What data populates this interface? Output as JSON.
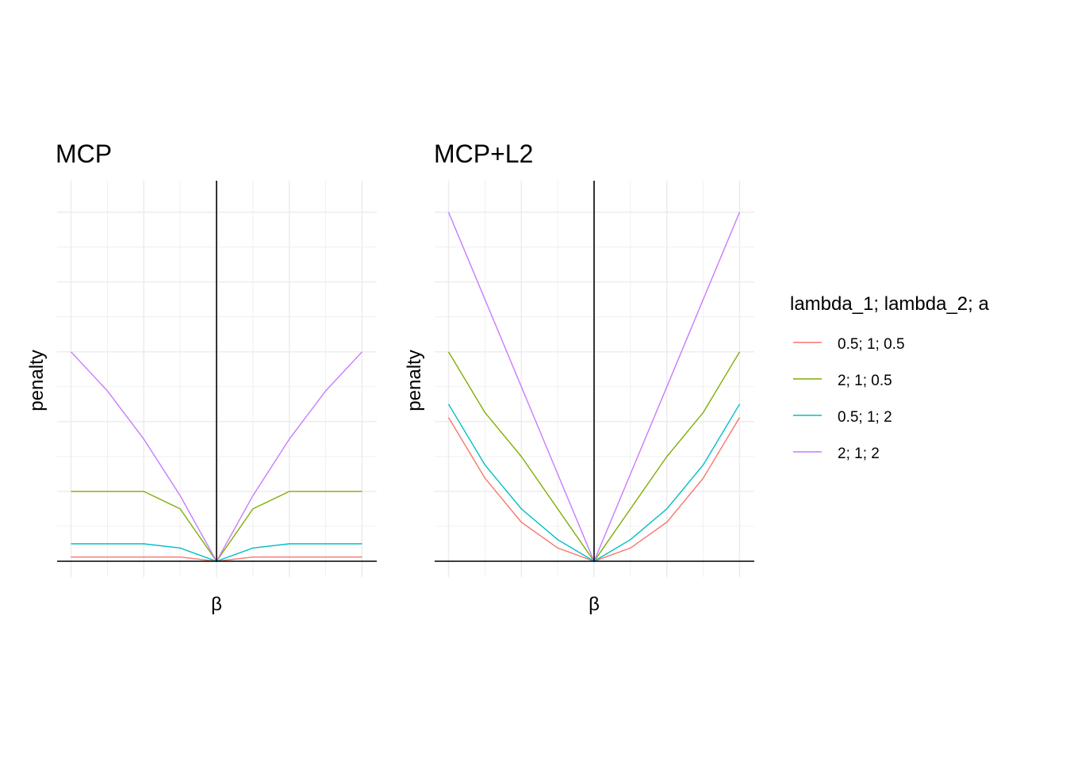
{
  "chart_data": [
    {
      "type": "line",
      "title": "MCP",
      "xlabel": "β",
      "ylabel": "penalty",
      "xlim": [
        -2,
        2
      ],
      "ylim": [
        0,
        5.2
      ],
      "x_sampling": "0.5 steps from -2 to 2",
      "series": [
        {
          "name": "0.5; 1; 0.5",
          "color": "#F8766D",
          "x": [
            -2,
            -1.5,
            -1,
            -0.5,
            0,
            0.5,
            1,
            1.5,
            2
          ],
          "y": [
            0.06,
            0.06,
            0.06,
            0.06,
            0,
            0.06,
            0.06,
            0.06,
            0.06
          ]
        },
        {
          "name": "2; 1; 0.5",
          "color": "#7CAE00",
          "x": [
            -2,
            -1.5,
            -1,
            -0.5,
            0,
            0.5,
            1,
            1.5,
            2
          ],
          "y": [
            1.0,
            1.0,
            1.0,
            0.75,
            0,
            0.75,
            1.0,
            1.0,
            1.0
          ]
        },
        {
          "name": "0.5; 1; 2",
          "color": "#00BFC4",
          "x": [
            -2,
            -1.5,
            -1,
            -0.5,
            0,
            0.5,
            1,
            1.5,
            2
          ],
          "y": [
            0.25,
            0.25,
            0.25,
            0.19,
            0,
            0.19,
            0.25,
            0.25,
            0.25
          ]
        },
        {
          "name": "2; 1; 2",
          "color": "#C77CFF",
          "x": [
            -2,
            -1.5,
            -1,
            -0.5,
            0,
            0.5,
            1,
            1.5,
            2
          ],
          "y": [
            3.0,
            2.44,
            1.75,
            0.94,
            0,
            0.94,
            1.75,
            2.44,
            3.0
          ]
        }
      ]
    },
    {
      "type": "line",
      "title": "MCP+L2",
      "xlabel": "β",
      "ylabel": "penalty",
      "xlim": [
        -2,
        2
      ],
      "ylim": [
        0,
        5.2
      ],
      "x_sampling": "0.5 steps from -2 to 2",
      "series": [
        {
          "name": "0.5; 1; 0.5",
          "color": "#F8766D",
          "x": [
            -2,
            -1.5,
            -1,
            -0.5,
            0,
            0.5,
            1,
            1.5,
            2
          ],
          "y": [
            2.06,
            1.19,
            0.56,
            0.19,
            0,
            0.19,
            0.56,
            1.19,
            2.06
          ]
        },
        {
          "name": "2; 1; 0.5",
          "color": "#7CAE00",
          "x": [
            -2,
            -1.5,
            -1,
            -0.5,
            0,
            0.5,
            1,
            1.5,
            2
          ],
          "y": [
            3.0,
            2.13,
            1.5,
            0.75,
            0,
            0.75,
            1.5,
            2.13,
            3.0
          ]
        },
        {
          "name": "0.5; 1; 2",
          "color": "#00BFC4",
          "x": [
            -2,
            -1.5,
            -1,
            -0.5,
            0,
            0.5,
            1,
            1.5,
            2
          ],
          "y": [
            2.25,
            1.38,
            0.75,
            0.31,
            0,
            0.31,
            0.75,
            1.38,
            2.25
          ]
        },
        {
          "name": "2; 1; 2",
          "color": "#C77CFF",
          "x": [
            -2,
            -1.5,
            -1,
            -0.5,
            0,
            0.5,
            1,
            1.5,
            2
          ],
          "y": [
            5.0,
            3.75,
            2.5,
            1.25,
            0,
            1.25,
            2.5,
            3.75,
            5.0
          ]
        }
      ]
    }
  ],
  "legend": {
    "title": "lambda_1; lambda_2; a",
    "placement": "right",
    "items": [
      {
        "label": "0.5; 1; 0.5",
        "color": "#F8766D"
      },
      {
        "label": "2; 1; 0.5",
        "color": "#7CAE00"
      },
      {
        "label": "0.5; 1; 2",
        "color": "#00BFC4"
      },
      {
        "label": "2; 1; 2",
        "color": "#C77CFF"
      }
    ]
  }
}
